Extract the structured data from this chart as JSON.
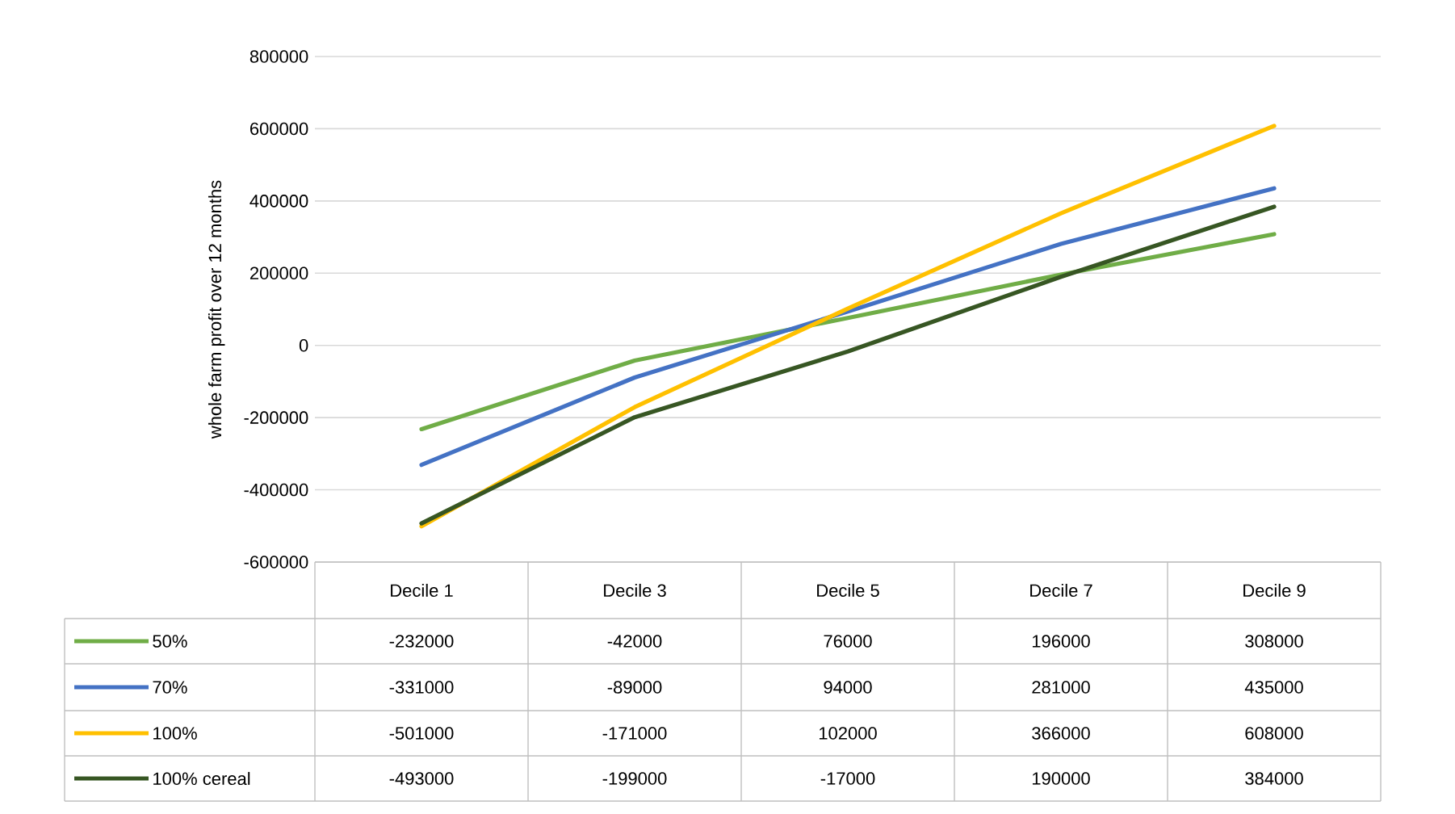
{
  "chart_data": {
    "type": "line",
    "ylabel": "whole farm profit over 12 months",
    "categories": [
      "Decile 1",
      "Decile 3",
      "Decile 5",
      "Decile 7",
      "Decile 9"
    ],
    "series": [
      {
        "name": "50%",
        "color": "#70ad47",
        "values": [
          -232000,
          -42000,
          76000,
          196000,
          308000
        ]
      },
      {
        "name": "70%",
        "color": "#4472c4",
        "values": [
          -331000,
          -89000,
          94000,
          281000,
          435000
        ]
      },
      {
        "name": "100%",
        "color": "#ffc000",
        "values": [
          -501000,
          -171000,
          102000,
          366000,
          608000
        ]
      },
      {
        "name": "100% cereal",
        "color": "#375623",
        "values": [
          -493000,
          -199000,
          -17000,
          190000,
          384000
        ]
      }
    ],
    "ylim": [
      -600000,
      800000
    ],
    "yticks": [
      -600000,
      -400000,
      -200000,
      0,
      200000,
      400000,
      600000,
      800000
    ],
    "grid": "y",
    "legend": "bottom",
    "data_labels": true
  }
}
